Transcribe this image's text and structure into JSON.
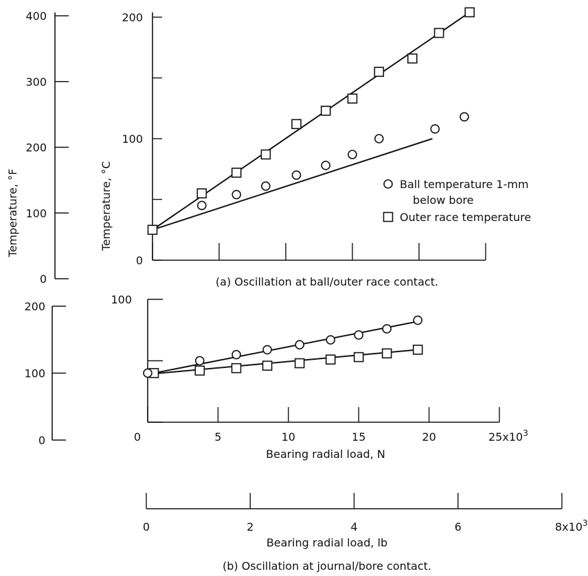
{
  "chart_data": [
    {
      "type": "scatter",
      "panel": "a",
      "caption": "(a) Oscillation at ball/outer race contact.",
      "ylabel": "Temperature, °C",
      "ylabel_secondary": "Temperature, °F",
      "xlabel": "",
      "x_axis_ref": "Bearing radial load, N",
      "ylim": [
        0,
        200
      ],
      "y_ticks": [
        "0",
        "100",
        "200"
      ],
      "ylim_secondary": [
        0,
        400
      ],
      "y_ticks_secondary": [
        "0",
        "100",
        "200",
        "300",
        "400"
      ],
      "xlim": [
        0,
        25000
      ],
      "x_tick_values": [
        0,
        5000,
        10000,
        15000,
        20000,
        25000
      ],
      "legend": {
        "placement": "right",
        "entries": [
          {
            "marker": "circle",
            "label_line1": "Ball temperature 1-mm",
            "label_line2": "below bore"
          },
          {
            "marker": "square",
            "label_line1": "Outer race temperature",
            "label_line2": ""
          }
        ]
      },
      "series": [
        {
          "name": "Ball temperature 1-mm below bore",
          "marker": "circle",
          "x": [
            0,
            3700,
            6300,
            8500,
            10800,
            13000,
            15000,
            17000,
            21200,
            23400
          ],
          "y": [
            25,
            45,
            54,
            61,
            70,
            78,
            87,
            100,
            108,
            118
          ],
          "fit": [
            [
              0,
              25
            ],
            [
              21000,
              100
            ]
          ]
        },
        {
          "name": "Outer race temperature",
          "marker": "square",
          "x": [
            0,
            3700,
            6300,
            8500,
            10800,
            13000,
            15000,
            17000,
            19500,
            21500,
            23800
          ],
          "y": [
            25,
            55,
            72,
            87,
            112,
            123,
            133,
            155,
            166,
            187,
            204
          ],
          "fit": [
            [
              0,
              25
            ],
            [
              23800,
              204
            ]
          ]
        }
      ]
    },
    {
      "type": "scatter",
      "panel": "b",
      "caption": "(b) Oscillation at journal/bore contact.",
      "ylabel": "",
      "ylabel_secondary": "",
      "xlabel": "Bearing radial load, N",
      "xlabel_secondary": "Bearing radial load, lb",
      "ylim": [
        0,
        100
      ],
      "y_ticks": [
        "100"
      ],
      "ylim_secondary": [
        0,
        200
      ],
      "y_ticks_secondary": [
        "0",
        "100",
        "200"
      ],
      "xlim": [
        0,
        25000
      ],
      "x_ticks": [
        "0",
        "5",
        "10",
        "15",
        "20",
        "25x10"
      ],
      "x_exponent": "3",
      "xlim_secondary": [
        0,
        8000
      ],
      "x_ticks_secondary": [
        "0",
        "2",
        "4",
        "6",
        "8x10"
      ],
      "x_exponent_secondary": "3",
      "series": [
        {
          "name": "Ball temperature 1-mm below bore",
          "marker": "circle",
          "x": [
            0,
            3700,
            6300,
            8500,
            10800,
            13000,
            15000,
            17000,
            19200
          ],
          "y": [
            40,
            50,
            55,
            59,
            63,
            67,
            71,
            76,
            83
          ],
          "fit": [
            [
              0,
              39
            ],
            [
              19200,
              82
            ]
          ]
        },
        {
          "name": "Outer race temperature",
          "marker": "square",
          "x": [
            0,
            3700,
            6300,
            8500,
            10800,
            13000,
            15000,
            17000,
            19200
          ],
          "y": [
            40,
            42,
            44,
            46,
            48,
            51,
            53,
            56,
            59
          ],
          "fit": [
            [
              0,
              39
            ],
            [
              19200,
              59
            ]
          ]
        }
      ]
    }
  ]
}
